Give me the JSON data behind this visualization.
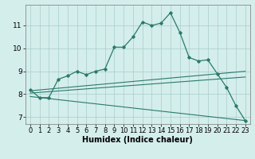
{
  "xlabel": "Humidex (Indice chaleur)",
  "line_color": "#2a7a6a",
  "background_color": "#d4eeec",
  "grid_color": "#a8cccc",
  "xlim": [
    -0.5,
    23.5
  ],
  "ylim": [
    6.7,
    11.9
  ],
  "xticks": [
    0,
    1,
    2,
    3,
    4,
    5,
    6,
    7,
    8,
    9,
    10,
    11,
    12,
    13,
    14,
    15,
    16,
    17,
    18,
    19,
    20,
    21,
    22,
    23
  ],
  "yticks": [
    7,
    8,
    9,
    10,
    11
  ],
  "main_x": [
    0,
    1,
    2,
    3,
    4,
    5,
    6,
    7,
    8,
    9,
    10,
    11,
    12,
    13,
    14,
    15,
    16,
    17,
    18,
    19,
    20,
    21,
    22,
    23
  ],
  "main_y": [
    8.2,
    7.85,
    7.85,
    8.65,
    8.8,
    9.0,
    8.85,
    9.0,
    9.1,
    10.05,
    10.05,
    10.5,
    11.15,
    11.0,
    11.1,
    11.55,
    10.7,
    9.6,
    9.45,
    9.5,
    8.9,
    8.3,
    7.5,
    6.85
  ],
  "line1_x": [
    0,
    23
  ],
  "line1_y": [
    8.15,
    9.0
  ],
  "line2_x": [
    0,
    23
  ],
  "line2_y": [
    8.05,
    8.75
  ],
  "line3_x": [
    0,
    23
  ],
  "line3_y": [
    7.9,
    6.85
  ],
  "xlabel_fontsize": 7,
  "tick_fontsize": 6
}
